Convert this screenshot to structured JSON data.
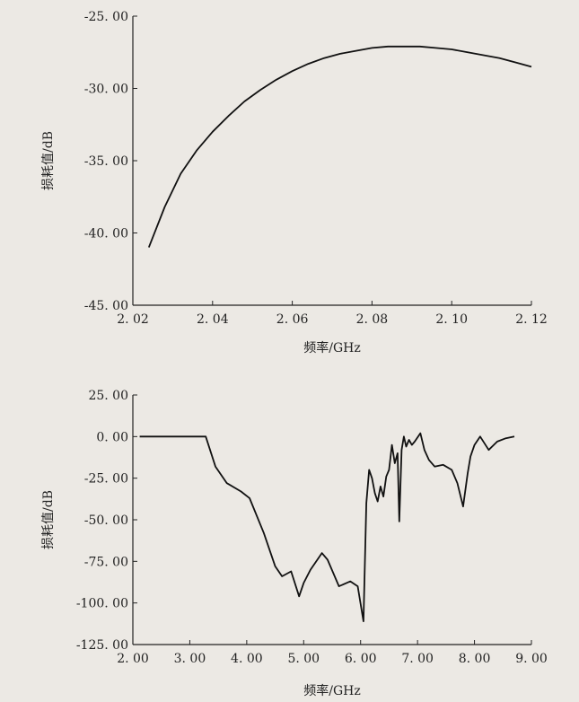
{
  "chart_data": [
    {
      "type": "line",
      "title": "",
      "xlabel": "频率/GHz",
      "ylabel": "损耗值/dB",
      "xlim": [
        2.02,
        2.12
      ],
      "ylim": [
        -45,
        -25
      ],
      "grid": false,
      "x_ticks": [
        "2. 02",
        "2. 04",
        "2. 06",
        "2. 08",
        "2. 10",
        "2. 12"
      ],
      "y_ticks": [
        "-25. 00",
        "-30. 00",
        "-35. 00",
        "-40. 00",
        "-45. 00"
      ],
      "series": [
        {
          "x": [
            2.024,
            2.028,
            2.032,
            2.036,
            2.04,
            2.044,
            2.048,
            2.052,
            2.056,
            2.06,
            2.064,
            2.068,
            2.072,
            2.076,
            2.08,
            2.084,
            2.088,
            2.092,
            2.096,
            2.1,
            2.104,
            2.108,
            2.112,
            2.116,
            2.12
          ],
          "y": [
            -41.0,
            -38.2,
            -35.9,
            -34.3,
            -33.0,
            -31.9,
            -30.9,
            -30.1,
            -29.4,
            -28.8,
            -28.3,
            -27.9,
            -27.6,
            -27.4,
            -27.2,
            -27.1,
            -27.1,
            -27.1,
            -27.2,
            -27.3,
            -27.5,
            -27.7,
            -27.9,
            -28.2,
            -28.5
          ]
        }
      ]
    },
    {
      "type": "line",
      "title": "",
      "xlabel": "频率/GHz",
      "ylabel": "损耗值/dB",
      "xlim": [
        2.0,
        9.0
      ],
      "ylim": [
        -125,
        25
      ],
      "grid": false,
      "x_ticks": [
        "2. 00",
        "3. 00",
        "4. 00",
        "5. 00",
        "6. 00",
        "7. 00",
        "8. 00",
        "9. 00"
      ],
      "y_ticks": [
        "25. 00",
        "0. 00",
        "-25. 00",
        "-50. 00",
        "-75. 00",
        "-100. 00",
        "-125. 00"
      ],
      "series": [
        {
          "x": [
            2.12,
            3.0,
            3.28,
            3.45,
            3.65,
            3.9,
            4.05,
            4.3,
            4.5,
            4.62,
            4.78,
            4.92,
            5.0,
            5.12,
            5.32,
            5.42,
            5.62,
            5.82,
            5.95,
            6.05,
            6.1,
            6.15,
            6.2,
            6.25,
            6.3,
            6.35,
            6.4,
            6.45,
            6.5,
            6.55,
            6.6,
            6.65,
            6.68,
            6.72,
            6.76,
            6.8,
            6.85,
            6.9,
            6.95,
            7.05,
            7.12,
            7.2,
            7.3,
            7.45,
            7.6,
            7.7,
            7.8,
            7.88,
            7.93,
            8.0,
            8.1,
            8.25,
            8.4,
            8.55,
            8.7
          ],
          "y": [
            0,
            0,
            0,
            -18,
            -28,
            -33,
            -37,
            -58,
            -78,
            -84,
            -81,
            -96,
            -88,
            -80,
            -70,
            -74,
            -90,
            -87,
            -90,
            -111,
            -40,
            -20,
            -25,
            -34,
            -39,
            -30,
            -36,
            -24,
            -20,
            -5,
            -16,
            -10,
            -51,
            -8,
            0,
            -6,
            -2,
            -5,
            -3,
            2,
            -8,
            -14,
            -18,
            -17,
            -20,
            -28,
            -42,
            -22,
            -12,
            -5,
            0,
            -8,
            -3,
            -1,
            0
          ]
        }
      ]
    }
  ]
}
